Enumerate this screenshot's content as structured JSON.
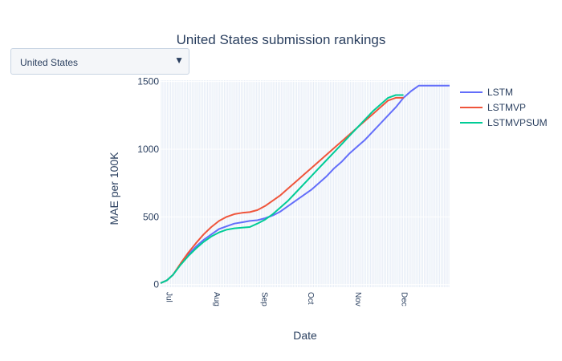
{
  "title": "United States submission rankings",
  "dropdown": {
    "selected": "United States",
    "caret": "▼"
  },
  "chart_data": {
    "type": "line",
    "title": "United States submission rankings",
    "xlabel": "Date",
    "ylabel": "MAE per 100K",
    "ylim": [
      -20,
      1510
    ],
    "yticks": [
      0,
      500,
      1000,
      1500
    ],
    "x_tick_labels": [
      "Jul",
      "Aug",
      "Sep",
      "Oct",
      "Nov",
      "Dec"
    ],
    "x_tick_dates": [
      "2020-07-01",
      "2020-08-01",
      "2020-09-01",
      "2020-10-01",
      "2020-11-01",
      "2020-12-01"
    ],
    "x_range": [
      "2020-06-27",
      "2021-01-01"
    ],
    "legend_position": "top-right",
    "grid": true,
    "series": [
      {
        "name": "LSTM",
        "color": "#636efa",
        "x": [
          "2020-06-27",
          "2020-07-01",
          "2020-07-05",
          "2020-07-10",
          "2020-07-15",
          "2020-07-20",
          "2020-07-25",
          "2020-07-30",
          "2020-08-04",
          "2020-08-09",
          "2020-08-14",
          "2020-08-19",
          "2020-08-24",
          "2020-08-29",
          "2020-09-03",
          "2020-09-08",
          "2020-09-13",
          "2020-09-18",
          "2020-09-23",
          "2020-09-28",
          "2020-10-03",
          "2020-10-08",
          "2020-10-13",
          "2020-10-18",
          "2020-10-23",
          "2020-10-28",
          "2020-11-02",
          "2020-11-07",
          "2020-11-12",
          "2020-11-17",
          "2020-11-22",
          "2020-11-27",
          "2020-12-02",
          "2020-12-07",
          "2020-12-12",
          "2020-12-17",
          "2020-12-22",
          "2020-12-27",
          "2021-01-01"
        ],
        "y": [
          10,
          30,
          70,
          150,
          220,
          280,
          330,
          370,
          410,
          430,
          450,
          460,
          470,
          475,
          490,
          510,
          540,
          580,
          620,
          660,
          700,
          750,
          800,
          860,
          910,
          970,
          1020,
          1070,
          1130,
          1190,
          1250,
          1310,
          1380,
          1430,
          1470,
          1470,
          1470,
          1470,
          1470
        ]
      },
      {
        "name": "LSTMVP",
        "color": "#ef553b",
        "x": [
          "2020-06-27",
          "2020-07-01",
          "2020-07-05",
          "2020-07-10",
          "2020-07-15",
          "2020-07-20",
          "2020-07-25",
          "2020-07-30",
          "2020-08-04",
          "2020-08-09",
          "2020-08-14",
          "2020-08-19",
          "2020-08-24",
          "2020-08-29",
          "2020-09-03",
          "2020-09-08",
          "2020-09-13",
          "2020-09-18",
          "2020-09-23",
          "2020-09-28",
          "2020-10-03",
          "2020-10-08",
          "2020-10-13",
          "2020-10-18",
          "2020-10-23",
          "2020-10-28",
          "2020-11-02",
          "2020-11-07",
          "2020-11-12",
          "2020-11-17",
          "2020-11-22",
          "2020-11-27",
          "2020-12-02"
        ],
        "y": [
          10,
          30,
          70,
          155,
          235,
          305,
          370,
          425,
          470,
          500,
          520,
          530,
          535,
          550,
          580,
          620,
          660,
          710,
          760,
          810,
          860,
          910,
          960,
          1010,
          1060,
          1110,
          1160,
          1210,
          1260,
          1310,
          1360,
          1380,
          1380
        ]
      },
      {
        "name": "LSTMVPSUM",
        "color": "#00cc96",
        "x": [
          "2020-06-27",
          "2020-07-01",
          "2020-07-05",
          "2020-07-10",
          "2020-07-15",
          "2020-07-20",
          "2020-07-25",
          "2020-07-30",
          "2020-08-04",
          "2020-08-09",
          "2020-08-14",
          "2020-08-19",
          "2020-08-24",
          "2020-08-29",
          "2020-09-03",
          "2020-09-08",
          "2020-09-13",
          "2020-09-18",
          "2020-09-23",
          "2020-09-28",
          "2020-10-03",
          "2020-10-08",
          "2020-10-13",
          "2020-10-18",
          "2020-10-23",
          "2020-10-28",
          "2020-11-02",
          "2020-11-07",
          "2020-11-12",
          "2020-11-17",
          "2020-11-22",
          "2020-11-27",
          "2020-12-02"
        ],
        "y": [
          10,
          30,
          70,
          145,
          210,
          265,
          315,
          355,
          385,
          405,
          415,
          420,
          425,
          450,
          480,
          520,
          570,
          620,
          680,
          740,
          800,
          860,
          920,
          980,
          1040,
          1100,
          1160,
          1220,
          1280,
          1330,
          1380,
          1400,
          1400
        ]
      }
    ]
  }
}
